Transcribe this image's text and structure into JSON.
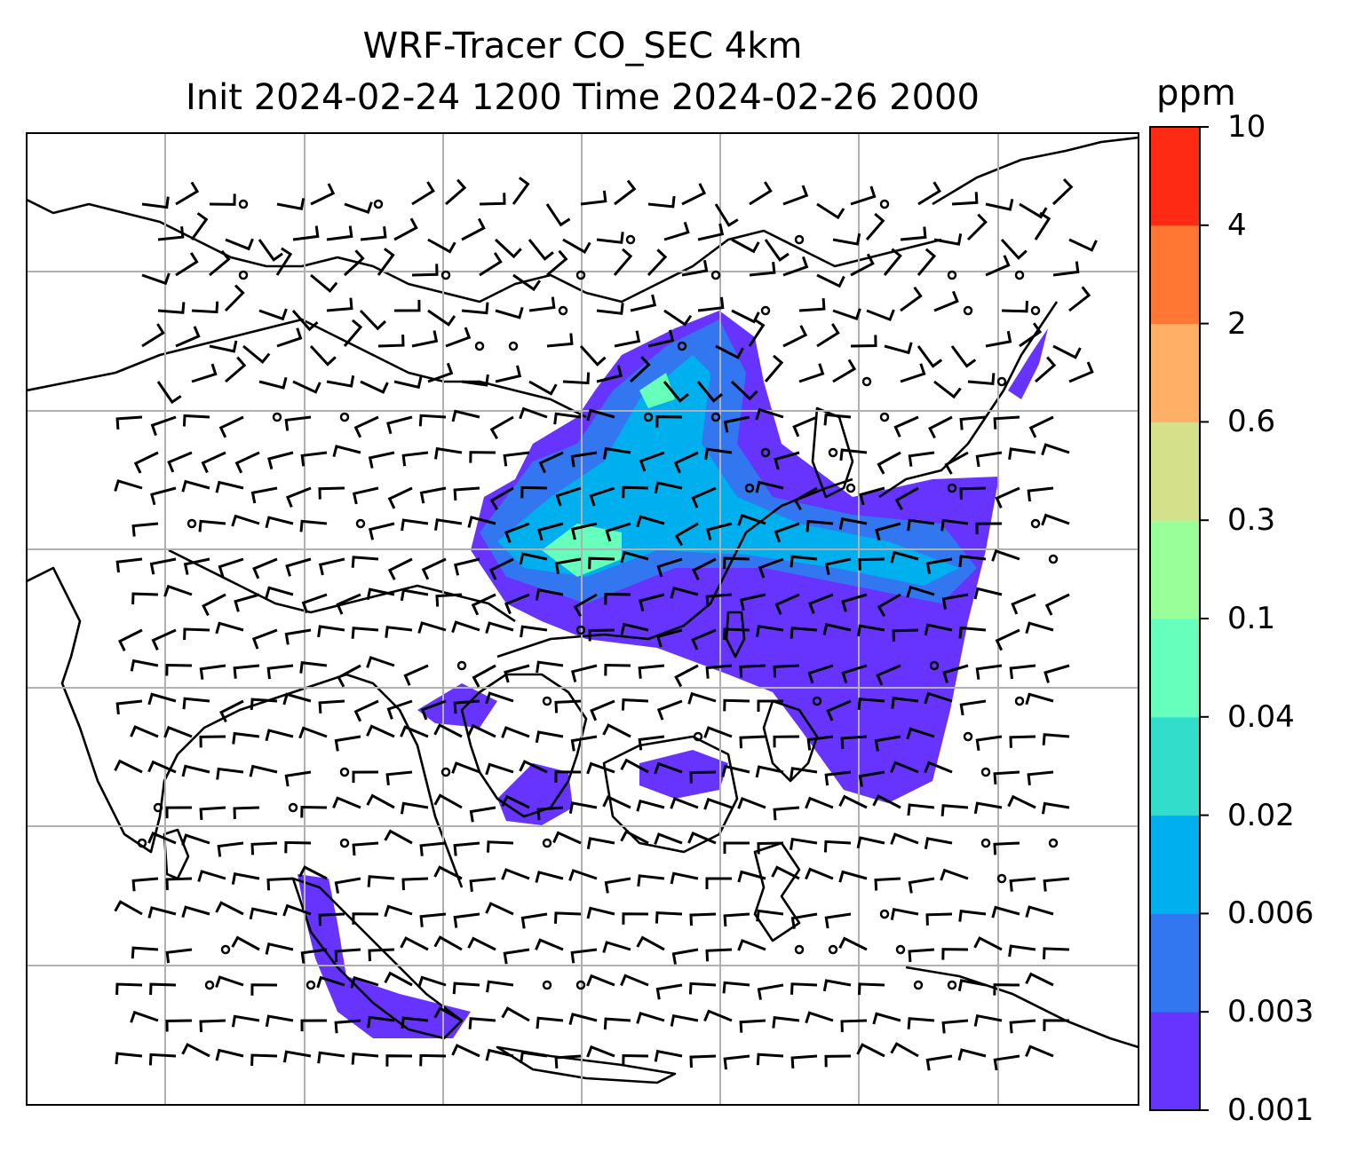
{
  "title_line1": "WRF-Tracer CO_SEC 4km",
  "title_line2": "Init 2024-02-24 1200 Time 2024-02-26 2000",
  "colorbar": {
    "unit": "ppm",
    "ticks": [
      "0.001",
      "0.003",
      "0.006",
      "0.02",
      "0.04",
      "0.1",
      "0.3",
      "0.6",
      "2",
      "4",
      "10"
    ],
    "colors": [
      "#6633ff",
      "#3377f0",
      "#00b0ee",
      "#33ddcc",
      "#66ffbb",
      "#99ff99",
      "#d4e08a",
      "#ffb066",
      "#ff7733",
      "#ff2a14"
    ]
  },
  "map": {
    "gridlines": true,
    "wind_barbs": true,
    "coastlines": true
  }
}
